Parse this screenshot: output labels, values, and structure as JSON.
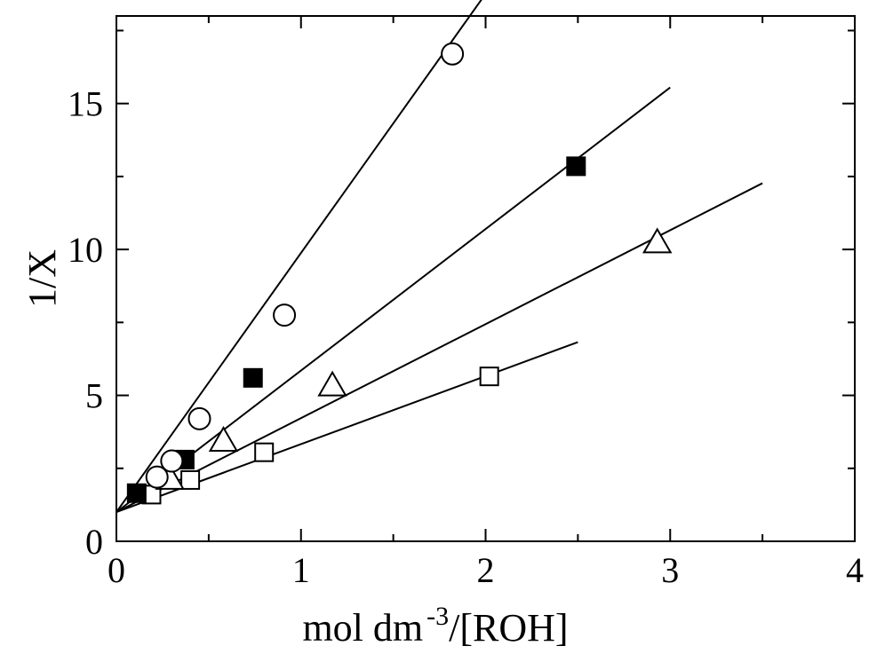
{
  "chart_data": {
    "type": "scatter",
    "title": "",
    "xlabel": {
      "main": "mol dm",
      "sup": "-3",
      "tail": "/[ROH]"
    },
    "ylabel": "1/X",
    "xlim": [
      0,
      4
    ],
    "ylim": [
      0,
      18
    ],
    "x_ticks": [
      0,
      1,
      2,
      3,
      4
    ],
    "x_tick_labels": [
      "0",
      "1",
      "2",
      "3",
      "4"
    ],
    "y_ticks": [
      0,
      5,
      10,
      15
    ],
    "y_tick_labels": [
      "0",
      "5",
      "10",
      "15"
    ],
    "grid": false,
    "legend": "none",
    "series": [
      {
        "marker": "circle-open",
        "x": [
          0.22,
          0.3,
          0.45,
          0.91,
          1.82
        ],
        "y": [
          2.2,
          2.75,
          4.2,
          7.75,
          16.7
        ],
        "fit": {
          "intercept": 1.0,
          "slope": 8.88,
          "x_range": [
            0,
            2.0
          ]
        }
      },
      {
        "marker": "square-filled",
        "x": [
          0.11,
          0.37,
          0.74,
          2.49
        ],
        "y": [
          1.65,
          2.8,
          5.6,
          12.85
        ],
        "fit": {
          "intercept": 1.0,
          "slope": 4.85,
          "x_range": [
            0,
            3.0
          ]
        }
      },
      {
        "marker": "triangle-open",
        "x": [
          0.29,
          0.58,
          1.17,
          2.93
        ],
        "y": [
          2.1,
          3.4,
          5.3,
          10.2
        ],
        "fit": {
          "intercept": 1.0,
          "slope": 3.22,
          "x_range": [
            0,
            3.5
          ]
        }
      },
      {
        "marker": "square-open",
        "x": [
          0.19,
          0.4,
          0.8,
          2.02
        ],
        "y": [
          1.6,
          2.1,
          3.05,
          5.65
        ],
        "fit": {
          "intercept": 1.0,
          "slope": 2.33,
          "x_range": [
            0,
            2.5
          ]
        }
      }
    ]
  }
}
